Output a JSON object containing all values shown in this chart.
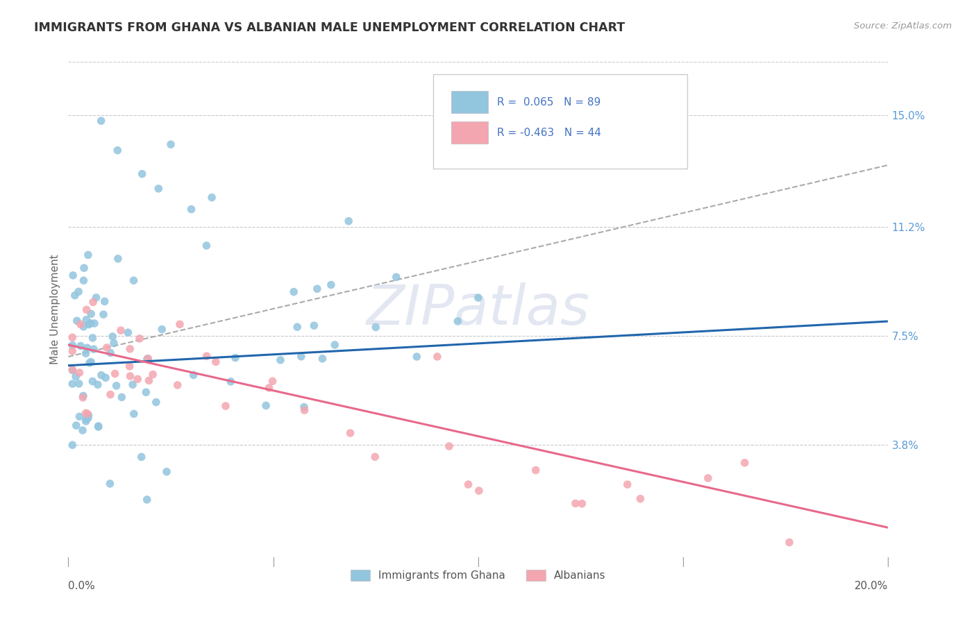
{
  "title": "IMMIGRANTS FROM GHANA VS ALBANIAN MALE UNEMPLOYMENT CORRELATION CHART",
  "source_text": "Source: ZipAtlas.com",
  "ylabel": "Male Unemployment",
  "right_ytick_labels": [
    "15.0%",
    "11.2%",
    "7.5%",
    "3.8%"
  ],
  "right_ytick_values": [
    0.15,
    0.112,
    0.075,
    0.038
  ],
  "watermark": "ZIPatlas",
  "xlim": [
    0.0,
    0.2
  ],
  "ylim": [
    0.0,
    0.168
  ],
  "ghana_color": "#92c5de",
  "albanian_color": "#f4a6b0",
  "ghana_R": 0.065,
  "ghana_N": 89,
  "albanian_R": -0.463,
  "albanian_N": 44,
  "ghana_line_color": "#2166ac",
  "albanian_line_color": "#e8688a",
  "dashed_line_color": "#aaaaaa",
  "legend_R_color": "#4472c4",
  "legend_label_color": "#555555",
  "background_color": "#ffffff",
  "grid_color": "#c8c8c8",
  "right_axis_color": "#5b9bd5",
  "ghana_line_start_y": 0.065,
  "ghana_line_end_y": 0.08,
  "albanian_line_start_y": 0.072,
  "albanian_line_end_y": 0.01,
  "dashed_line_start_y": 0.068,
  "dashed_line_end_y": 0.133
}
